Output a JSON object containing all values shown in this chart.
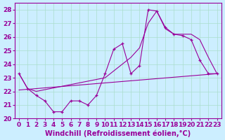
{
  "xlabel": "Windchill (Refroidissement éolien,°C)",
  "bg_color": "#cceeff",
  "line_color": "#990099",
  "ylim": [
    20,
    28.5
  ],
  "xlim": [
    -0.5,
    23.5
  ],
  "yticks": [
    20,
    21,
    22,
    23,
    24,
    25,
    26,
    27,
    28
  ],
  "xticks": [
    0,
    1,
    2,
    3,
    4,
    5,
    6,
    7,
    8,
    9,
    10,
    11,
    12,
    13,
    14,
    15,
    16,
    17,
    18,
    19,
    20,
    21,
    22,
    23
  ],
  "line1_x": [
    0,
    1,
    2,
    3,
    4,
    5,
    6,
    7,
    8,
    9,
    10,
    11,
    12,
    13,
    14,
    15,
    16,
    17,
    18,
    19,
    20,
    21,
    22,
    23
  ],
  "line1_y": [
    23.3,
    22.2,
    21.7,
    21.3,
    20.5,
    20.5,
    21.3,
    21.3,
    21.0,
    21.7,
    23.3,
    25.1,
    25.5,
    23.3,
    23.9,
    28.0,
    27.9,
    26.7,
    26.2,
    26.1,
    25.8,
    24.3,
    23.3,
    23.3
  ],
  "line2_x": [
    0,
    1,
    2,
    10,
    11,
    12,
    13,
    14,
    15,
    16,
    17,
    18,
    20,
    21,
    22,
    23
  ],
  "line2_y": [
    23.3,
    22.2,
    22.0,
    23.0,
    23.5,
    24.0,
    24.5,
    25.2,
    27.0,
    27.9,
    26.6,
    26.2,
    26.2,
    25.8,
    24.5,
    23.3
  ],
  "line3_x": [
    0,
    23
  ],
  "line3_y": [
    22.1,
    23.3
  ],
  "grid_color": "#aaddcc",
  "tick_fontsize": 6.5,
  "xlabel_fontsize": 7
}
